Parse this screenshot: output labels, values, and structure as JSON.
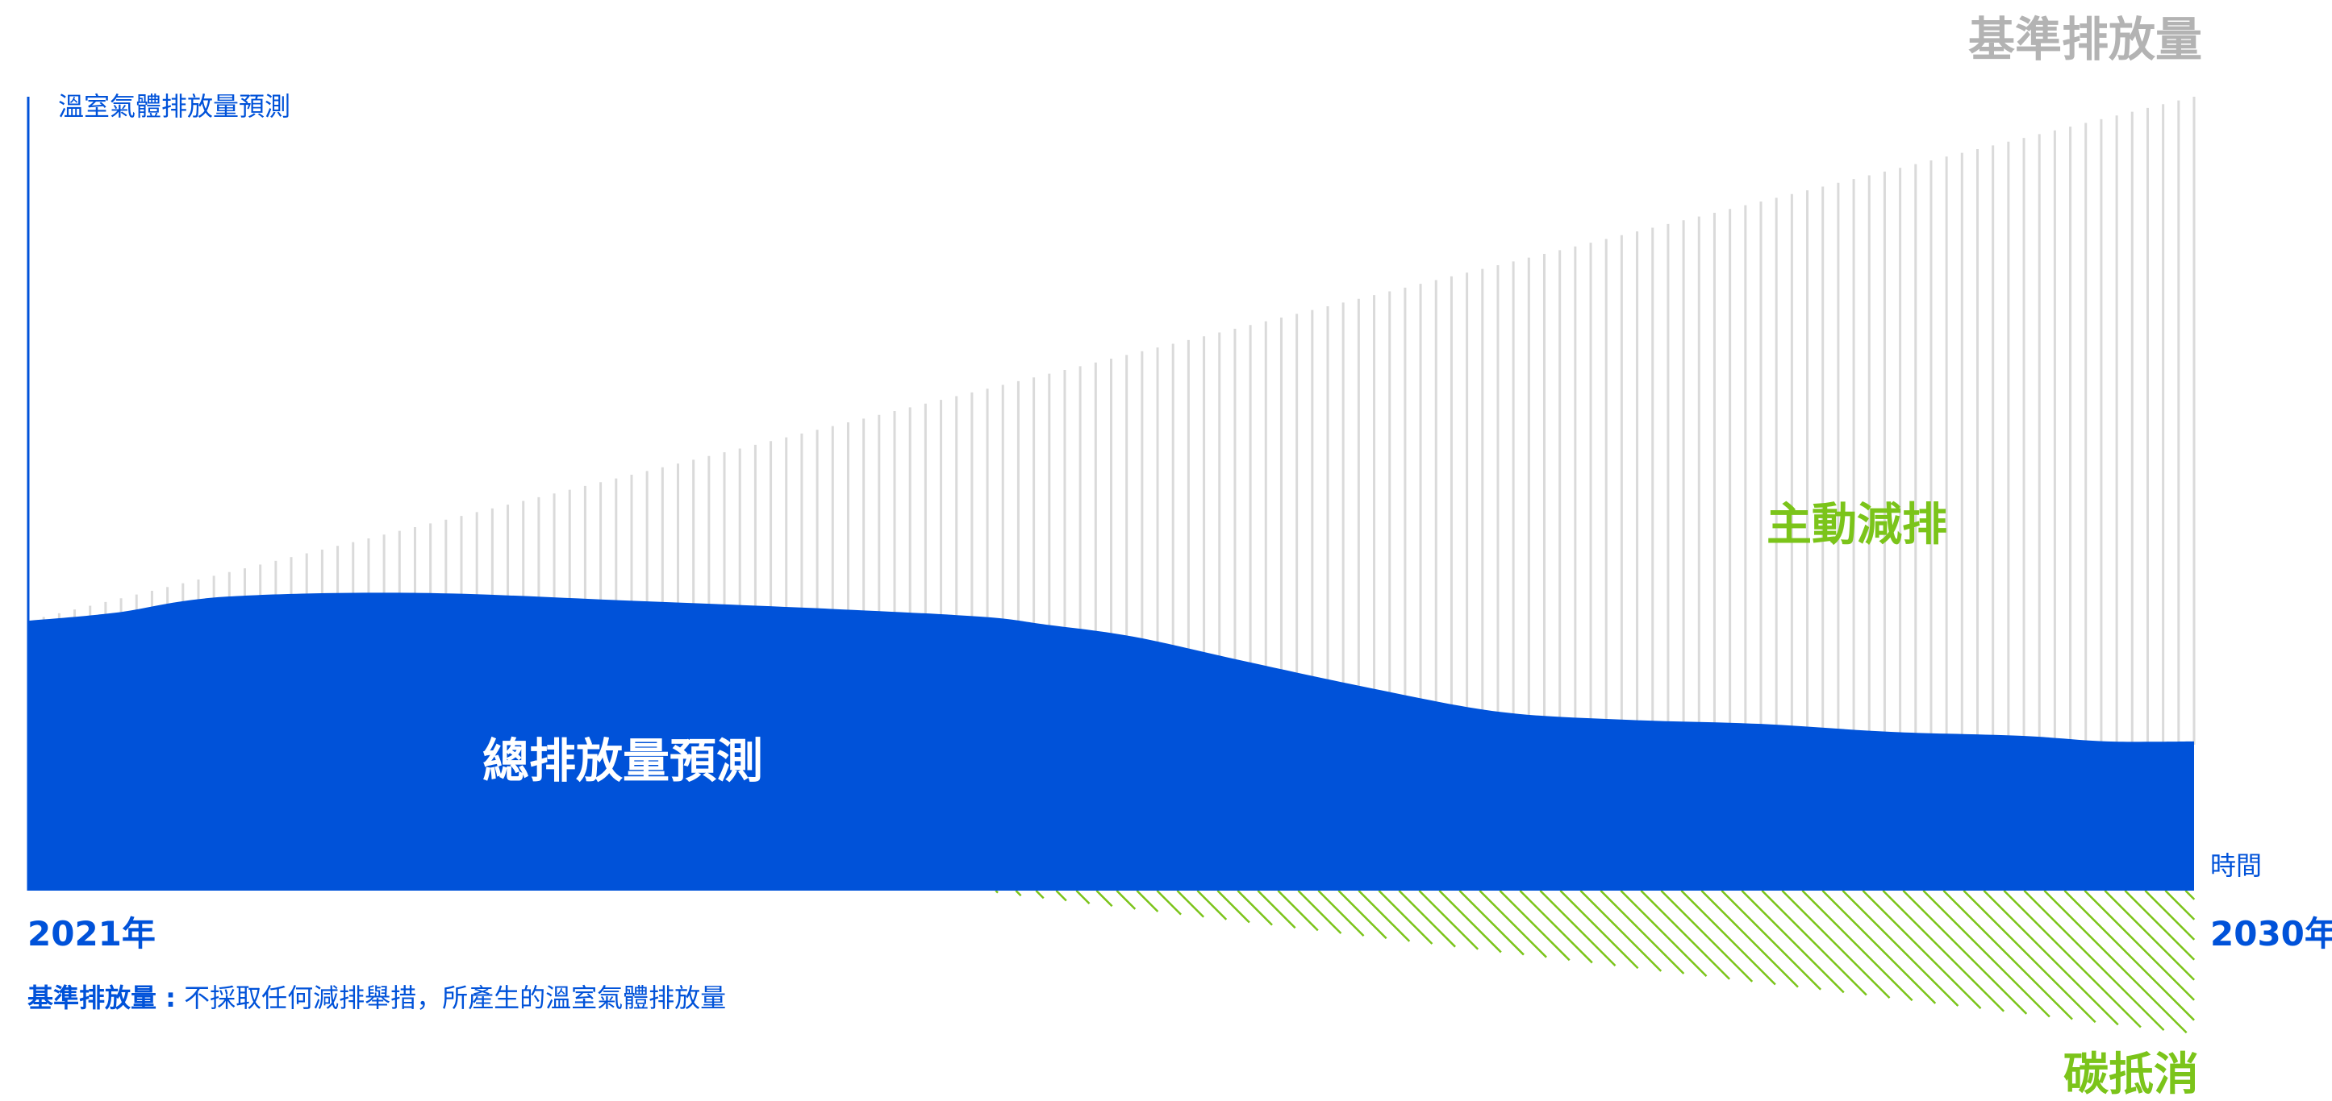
{
  "colors": {
    "total": "#0052D9",
    "baseline_lines": "#DADADA",
    "offset": "#7BC41A",
    "axis": "#0052D9",
    "title_gray": "#B3B3B3"
  },
  "chart_data": {
    "type": "area",
    "ylabel": "溫室氣體排放量預測",
    "xlabel": "時間",
    "x_start_label": "2021年",
    "x_end_label": "2030年",
    "ylim": [
      0,
      100
    ],
    "x": [
      0,
      0.04,
      0.09,
      0.18,
      0.28,
      0.37,
      0.44,
      0.47,
      0.51,
      0.56,
      0.62,
      0.68,
      0.74,
      0.8,
      0.86,
      0.92,
      0.96,
      1.0
    ],
    "series": [
      {
        "name": "基準排放量",
        "style": "vertical-lines",
        "x": [
          0,
          1.0
        ],
        "values": [
          34,
          100
        ]
      },
      {
        "name": "總排放量預測",
        "style": "filled-area",
        "values": [
          34,
          35,
          37,
          37.5,
          36.5,
          35.5,
          34.5,
          33.5,
          32,
          29,
          25.5,
          22.5,
          21.5,
          21,
          20,
          19.5,
          18.8,
          18.8
        ]
      },
      {
        "name": "碳抵消",
        "style": "diagonal-hatch",
        "x": [
          0.44,
          1.0
        ],
        "values": [
          0,
          -18
        ]
      }
    ],
    "annotations": [
      {
        "text": "主動減排",
        "role": "active-reduction"
      }
    ]
  },
  "labels": {
    "baseline_title": "基準排放量",
    "active_reduction": "主動減排",
    "total_projection": "總排放量預測",
    "carbon_offset": "碳抵消",
    "ylabel": "溫室氣體排放量預測",
    "xlabel": "時間",
    "year_start": "2021年",
    "year_end": "2030年"
  },
  "note": {
    "term": "基準排放量 :",
    "text": " 不採取任何減排舉措，所產生的溫室氣體排放量"
  }
}
